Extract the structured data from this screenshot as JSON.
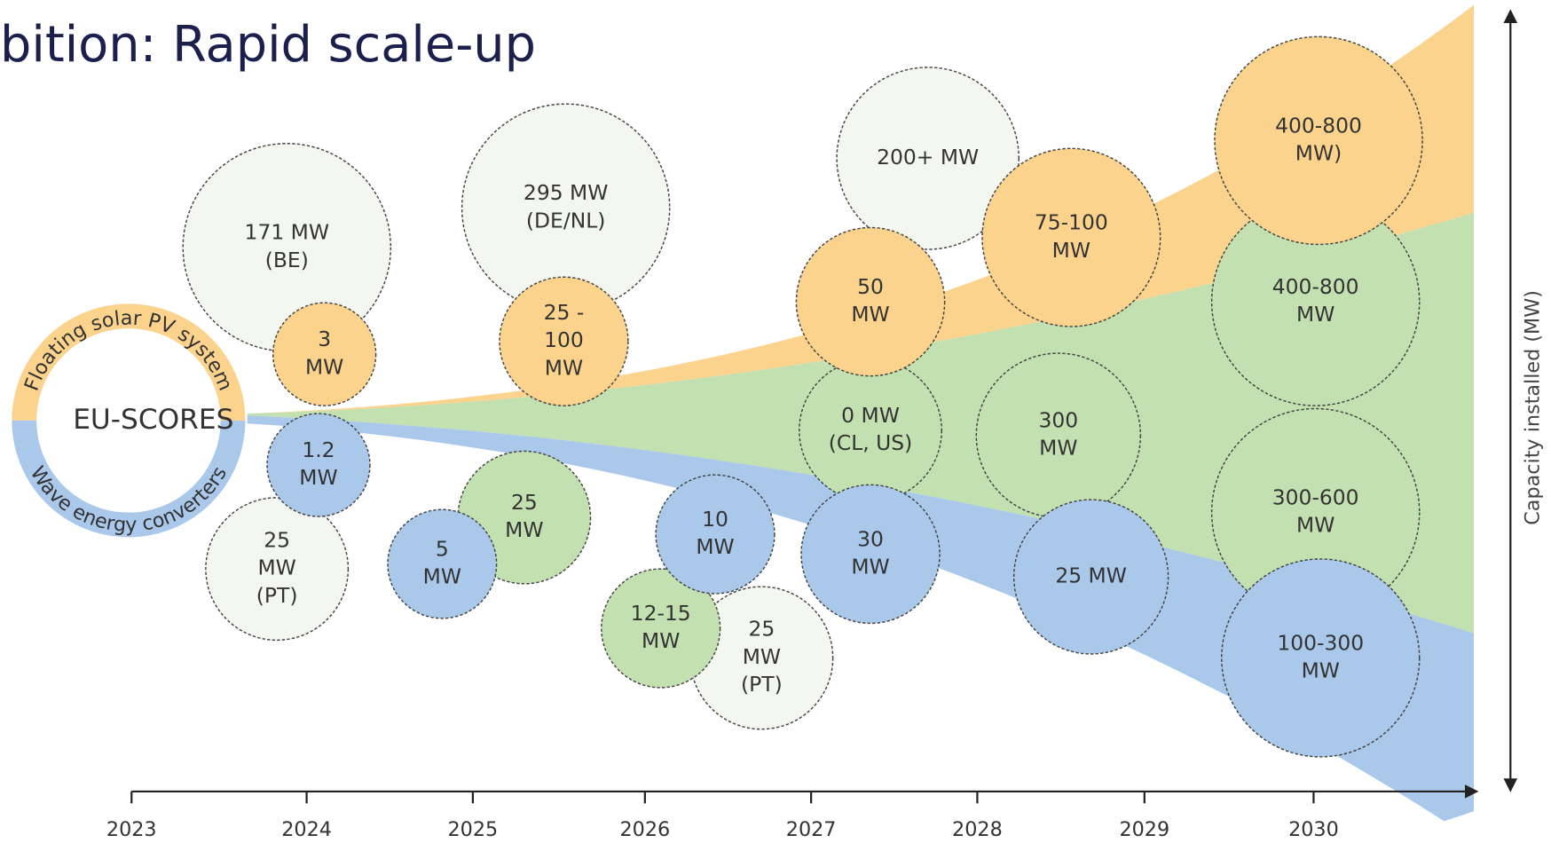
{
  "title": "bition: Rapid scale-up",
  "center_label": "EU-SCORES",
  "ring_top": "Floating solar PV system",
  "ring_bottom": "Wave energy converters",
  "axis_label": "Capacity installed (MW)",
  "years": [
    "2023",
    "2024",
    "2025",
    "2026",
    "2027",
    "2028",
    "2029",
    "2030"
  ],
  "nodes": [
    {
      "lines": [
        "171 MW",
        "(BE)"
      ]
    },
    {
      "lines": [
        "3",
        "MW"
      ]
    },
    {
      "lines": [
        "25",
        "MW",
        "(PT)"
      ]
    },
    {
      "lines": [
        "1.2",
        "MW"
      ]
    },
    {
      "lines": [
        "295 MW",
        "(DE/NL)"
      ]
    },
    {
      "lines": [
        "25 -",
        "100",
        "MW"
      ]
    },
    {
      "lines": [
        "25",
        "MW"
      ]
    },
    {
      "lines": [
        "5",
        "MW"
      ]
    },
    {
      "lines": [
        "25",
        "MW",
        "(PT)"
      ]
    },
    {
      "lines": [
        "12-15",
        "MW"
      ]
    },
    {
      "lines": [
        "10",
        "MW"
      ]
    },
    {
      "lines": [
        "200+ MW"
      ]
    },
    {
      "lines": [
        "0 MW",
        "(CL, US)"
      ]
    },
    {
      "lines": [
        "50",
        "MW"
      ]
    },
    {
      "lines": [
        "30",
        "MW"
      ]
    },
    {
      "lines": [
        "75-100",
        "MW"
      ]
    },
    {
      "lines": [
        "300",
        "MW"
      ]
    },
    {
      "lines": [
        "25 MW"
      ]
    },
    {
      "lines": [
        "400-800",
        "MW"
      ]
    },
    {
      "lines": [
        "300-600",
        "MW"
      ]
    },
    {
      "lines": [
        "400-800",
        "MW)"
      ]
    },
    {
      "lines": [
        "100-300",
        "MW"
      ]
    }
  ]
}
